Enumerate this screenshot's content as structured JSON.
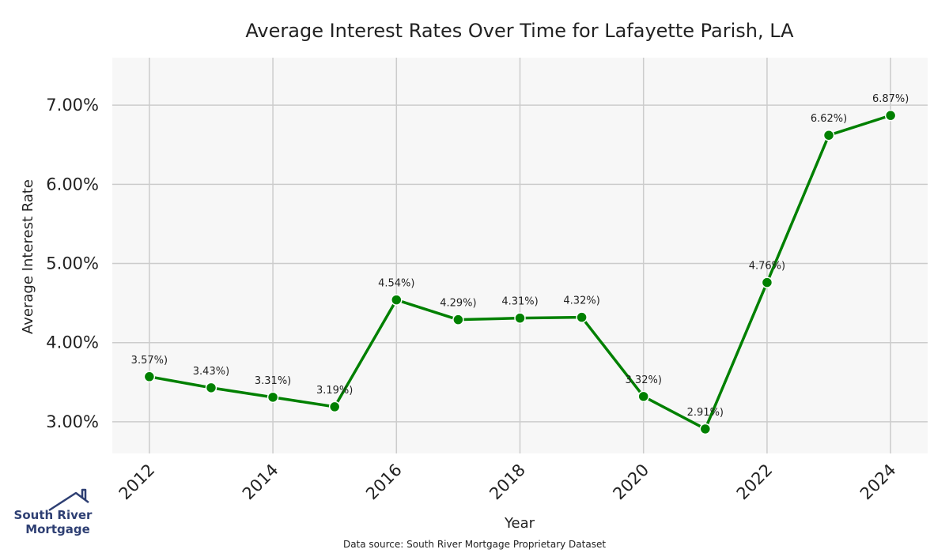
{
  "chart_data": {
    "type": "line",
    "title": "Average Interest Rates Over Time for Lafayette Parish, LA",
    "xlabel": "Year",
    "ylabel": "Average Interest Rate",
    "x": [
      2012,
      2013,
      2014,
      2015,
      2016,
      2017,
      2018,
      2019,
      2020,
      2021,
      2022,
      2023,
      2024
    ],
    "series": [
      {
        "values": [
          3.57,
          3.43,
          3.31,
          3.19,
          4.54,
          4.29,
          4.31,
          4.32,
          3.32,
          2.91,
          4.76,
          6.62,
          6.87
        ],
        "color": "#008000"
      }
    ],
    "data_labels": [
      "3.57%)",
      "3.43%)",
      "3.31%)",
      "3.19%)",
      "4.54%)",
      "4.29%)",
      "4.31%)",
      "4.32%)",
      "3.32%)",
      "2.91%)",
      "4.76%)",
      "6.62%)",
      "6.87%)"
    ],
    "x_ticks": [
      "2012",
      "2014",
      "2016",
      "2018",
      "2020",
      "2022",
      "2024"
    ],
    "x_tick_values": [
      2012,
      2014,
      2016,
      2018,
      2020,
      2022,
      2024
    ],
    "y_ticks": [
      "3.00%",
      "4.00%",
      "5.00%",
      "6.00%",
      "7.00%"
    ],
    "y_tick_values": [
      3,
      4,
      5,
      6,
      7
    ],
    "xlim": [
      2011.4,
      2024.6
    ],
    "ylim": [
      2.6,
      7.6
    ],
    "grid": true,
    "background_color": "#f7f7f7",
    "grid_color": "#cccccc"
  },
  "footer": {
    "source": "Data source: South River Mortgage Proprietary Dataset"
  },
  "logo": {
    "line1": "South River",
    "line2": "Mortgage",
    "color": "#2e3f73"
  }
}
